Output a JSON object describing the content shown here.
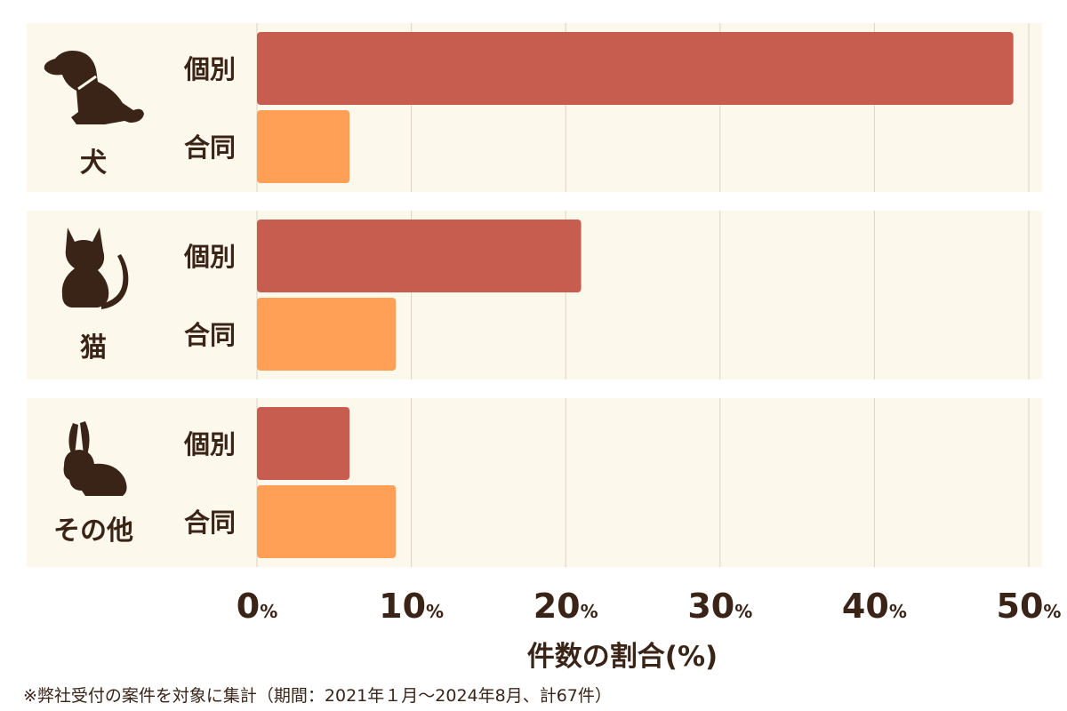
{
  "chart_data": {
    "type": "bar",
    "orientation": "horizontal",
    "groups": [
      {
        "label": "犬",
        "icon": "dog-icon"
      },
      {
        "label": "猫",
        "icon": "cat-icon"
      },
      {
        "label": "その他",
        "icon": "rabbit-icon"
      }
    ],
    "series": [
      {
        "name": "個別",
        "color": "#c65d4f",
        "values": [
          49,
          21,
          6
        ]
      },
      {
        "name": "合同",
        "color": "#ffa056",
        "values": [
          6,
          9,
          9
        ]
      }
    ],
    "xlim": [
      0,
      50
    ],
    "x_ticks": [
      {
        "num": "0",
        "unit": "%"
      },
      {
        "num": "10",
        "unit": "%"
      },
      {
        "num": "20",
        "unit": "%"
      },
      {
        "num": "30",
        "unit": "%"
      },
      {
        "num": "40",
        "unit": "%"
      },
      {
        "num": "50",
        "unit": "%"
      }
    ],
    "xlabel": "件数の割合(%)",
    "grid": true,
    "colors": {
      "panel_bg": "#fdf8ec",
      "grid": "#d9d4c8",
      "text": "#3a2418"
    }
  },
  "footnote": "※弊社受付の案件を対象に集計（期間：2021年１月〜2024年8月、計67件）"
}
